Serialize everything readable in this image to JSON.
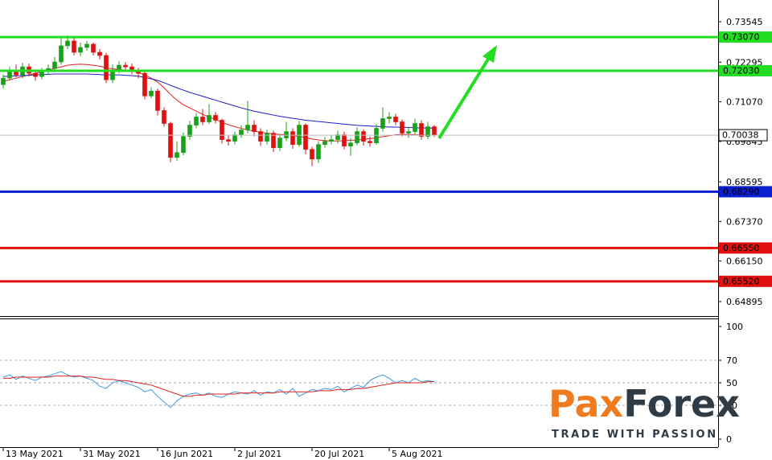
{
  "chart_data": [
    {
      "type": "candlestick",
      "categories": [
        "13 May 2021",
        null,
        null,
        null,
        null,
        null,
        null,
        null,
        null,
        null,
        null,
        null,
        "31 May 2021",
        null,
        null,
        null,
        null,
        null,
        null,
        null,
        null,
        null,
        null,
        null,
        "16 Jun 2021",
        null,
        null,
        null,
        null,
        null,
        null,
        null,
        null,
        null,
        null,
        null,
        "2 Jul 2021",
        null,
        null,
        null,
        null,
        null,
        null,
        null,
        null,
        null,
        null,
        null,
        "20 Jul 2021",
        null,
        null,
        null,
        null,
        null,
        null,
        null,
        null,
        null,
        null,
        null,
        "5 Aug 2021",
        null,
        null,
        null,
        null,
        null,
        null,
        null
      ],
      "ohlc": [
        [
          0.716,
          0.7192,
          0.7148,
          0.718
        ],
        [
          0.718,
          0.7215,
          0.7172,
          0.7205
        ],
        [
          0.7205,
          0.7222,
          0.7182,
          0.719
        ],
        [
          0.719,
          0.7228,
          0.718,
          0.7215
        ],
        [
          0.7215,
          0.7225,
          0.7185,
          0.7195
        ],
        [
          0.7195,
          0.7205,
          0.7172,
          0.7185
        ],
        [
          0.7185,
          0.7212,
          0.7176,
          0.72
        ],
        [
          0.72,
          0.7222,
          0.719,
          0.721
        ],
        [
          0.721,
          0.7245,
          0.7198,
          0.723
        ],
        [
          0.723,
          0.731,
          0.7222,
          0.728
        ],
        [
          0.728,
          0.7312,
          0.727,
          0.7295
        ],
        [
          0.7295,
          0.7305,
          0.725,
          0.726
        ],
        [
          0.726,
          0.729,
          0.7248,
          0.7275
        ],
        [
          0.7275,
          0.7296,
          0.7265,
          0.7285
        ],
        [
          0.7285,
          0.729,
          0.725,
          0.726
        ],
        [
          0.726,
          0.727,
          0.7238,
          0.725
        ],
        [
          0.725,
          0.7258,
          0.7165,
          0.7175
        ],
        [
          0.7175,
          0.7222,
          0.7165,
          0.7205
        ],
        [
          0.7205,
          0.7232,
          0.7195,
          0.722
        ],
        [
          0.722,
          0.723,
          0.72,
          0.7215
        ],
        [
          0.7215,
          0.7225,
          0.7192,
          0.7205
        ],
        [
          0.7205,
          0.7212,
          0.718,
          0.7195
        ],
        [
          0.7195,
          0.72,
          0.7115,
          0.7125
        ],
        [
          0.7125,
          0.7152,
          0.7118,
          0.714
        ],
        [
          0.714,
          0.7148,
          0.7065,
          0.708
        ],
        [
          0.708,
          0.709,
          0.703,
          0.704
        ],
        [
          0.704,
          0.7045,
          0.692,
          0.6935
        ],
        [
          0.6935,
          0.6985,
          0.6925,
          0.695
        ],
        [
          0.695,
          0.7012,
          0.6942,
          0.7
        ],
        [
          0.7,
          0.7048,
          0.699,
          0.7035
        ],
        [
          0.7035,
          0.7072,
          0.7025,
          0.706
        ],
        [
          0.706,
          0.7085,
          0.7035,
          0.7045
        ],
        [
          0.7045,
          0.71,
          0.7038,
          0.7065
        ],
        [
          0.7065,
          0.7075,
          0.704,
          0.705
        ],
        [
          0.705,
          0.7055,
          0.6978,
          0.699
        ],
        [
          0.699,
          0.7002,
          0.6972,
          0.6985
        ],
        [
          0.6985,
          0.7015,
          0.6975,
          0.7005
        ],
        [
          0.7005,
          0.7035,
          0.6995,
          0.702
        ],
        [
          0.702,
          0.711,
          0.701,
          0.7035
        ],
        [
          0.7035,
          0.705,
          0.7,
          0.7015
        ],
        [
          0.7015,
          0.7025,
          0.697,
          0.6985
        ],
        [
          0.6985,
          0.702,
          0.6975,
          0.701
        ],
        [
          0.701,
          0.7018,
          0.6952,
          0.6965
        ],
        [
          0.6965,
          0.7008,
          0.6955,
          0.6995
        ],
        [
          0.6995,
          0.7045,
          0.6985,
          0.7015
        ],
        [
          0.7015,
          0.7025,
          0.6962,
          0.6975
        ],
        [
          0.6975,
          0.7048,
          0.6968,
          0.7035
        ],
        [
          0.7035,
          0.704,
          0.6945,
          0.696
        ],
        [
          0.696,
          0.6968,
          0.6908,
          0.693
        ],
        [
          0.693,
          0.6985,
          0.6918,
          0.6975
        ],
        [
          0.6975,
          0.6998,
          0.6965,
          0.6985
        ],
        [
          0.6985,
          0.7005,
          0.6975,
          0.699
        ],
        [
          0.699,
          0.7018,
          0.6978,
          0.7005
        ],
        [
          0.7005,
          0.7015,
          0.696,
          0.697
        ],
        [
          0.697,
          0.6995,
          0.694,
          0.698
        ],
        [
          0.698,
          0.7028,
          0.6972,
          0.7015
        ],
        [
          0.7015,
          0.7022,
          0.6972,
          0.6985
        ],
        [
          0.6985,
          0.7,
          0.6968,
          0.698
        ],
        [
          0.698,
          0.7038,
          0.6975,
          0.7025
        ],
        [
          0.7025,
          0.709,
          0.7015,
          0.7055
        ],
        [
          0.7055,
          0.7075,
          0.704,
          0.706
        ],
        [
          0.706,
          0.707,
          0.7035,
          0.7045
        ],
        [
          0.7045,
          0.7052,
          0.7,
          0.701
        ],
        [
          0.701,
          0.7028,
          0.6995,
          0.7015
        ],
        [
          0.7015,
          0.7055,
          0.7005,
          0.704
        ],
        [
          0.704,
          0.705,
          0.699,
          0.7
        ],
        [
          0.7,
          0.7045,
          0.6992,
          0.703
        ],
        [
          0.703,
          0.7035,
          0.6998,
          0.70038
        ]
      ],
      "up_color": "#1aa01a",
      "down_color": "#e01010",
      "series": [
        {
          "color": "#e02020",
          "values": [
            0.717,
            0.7175,
            0.718,
            0.7185,
            0.719,
            0.7195,
            0.72,
            0.7205,
            0.721,
            0.7215,
            0.722,
            0.7222,
            0.7223,
            0.7222,
            0.722,
            0.7217,
            0.7212,
            0.7209,
            0.7207,
            0.7205,
            0.7202,
            0.7198,
            0.719,
            0.718,
            0.7168,
            0.715,
            0.713,
            0.7112,
            0.7098,
            0.7088,
            0.7078,
            0.7068,
            0.706,
            0.7052,
            0.7044,
            0.7036,
            0.703,
            0.7025,
            0.702,
            0.7016,
            0.7013,
            0.701,
            0.7008,
            0.7006,
            0.7005,
            0.7003,
            0.7,
            0.6996,
            0.6992,
            0.6989,
            0.6987,
            0.6986,
            0.6986,
            0.6987,
            0.6988,
            0.6989,
            0.6991,
            0.6993,
            0.6996,
            0.6999,
            0.7002,
            0.7005,
            0.7006,
            0.7006,
            0.7005,
            0.7005,
            0.7004,
            0.7004
          ]
        },
        {
          "color": "#1c1cc8",
          "values": [
            0.7185,
            0.7186,
            0.7187,
            0.7188,
            0.7189,
            0.719,
            0.7191,
            0.7192,
            0.7193,
            0.7193,
            0.7193,
            0.7193,
            0.7193,
            0.7193,
            0.7192,
            0.7191,
            0.719,
            0.719,
            0.719,
            0.7189,
            0.7188,
            0.7186,
            0.7182,
            0.7178,
            0.7173,
            0.7166,
            0.7158,
            0.715,
            0.7143,
            0.7136,
            0.713,
            0.7124,
            0.7118,
            0.7112,
            0.7106,
            0.71,
            0.7094,
            0.7088,
            0.7083,
            0.7078,
            0.7074,
            0.707,
            0.7066,
            0.7062,
            0.7059,
            0.7056,
            0.7053,
            0.705,
            0.7048,
            0.7046,
            0.7044,
            0.7042,
            0.704,
            0.7038,
            0.7036,
            0.7034,
            0.7033,
            0.7032,
            0.7031,
            0.703,
            0.7029,
            0.7029,
            0.7028,
            0.7028,
            0.7027,
            0.7026,
            0.7026,
            0.7025
          ]
        }
      ],
      "ylim": [
        0.64447,
        0.74216
      ],
      "yticks": [
        0.73545,
        0.72295,
        {
          "value": 0.7107,
          "label": "0.71070"
        },
        0.69845,
        0.68595,
        {
          "value": 0.6737,
          "label": "0.67370"
        },
        {
          "value": 0.6615,
          "label": "0.66150"
        },
        0.64895
      ],
      "levels": [
        {
          "value": 0.7307,
          "label": "0.73070",
          "color": "#22dd22"
        },
        {
          "value": 0.7203,
          "label": "0.72030",
          "color": "#22dd22"
        },
        {
          "value": 0.6829,
          "label": "0.68290",
          "color": "#0a1ed2"
        },
        {
          "value": 0.6655,
          "label": "0.66550",
          "color": "#e01010"
        },
        {
          "value": 0.6552,
          "label": "0.65520",
          "color": "#e01010"
        }
      ],
      "last_price": {
        "value": 0.70038,
        "color": "#c0c0c0"
      }
    },
    {
      "type": "line",
      "series": [
        {
          "color": "#3c9be0",
          "values": [
            55,
            57,
            53,
            56,
            54,
            52,
            55,
            56,
            58,
            60,
            57,
            55,
            56,
            54,
            52,
            47,
            45,
            50,
            52,
            50,
            48,
            46,
            42,
            44,
            38,
            33,
            28,
            34,
            38,
            40,
            41,
            39,
            41,
            38,
            37,
            40,
            42,
            41,
            40,
            43,
            39,
            42,
            41,
            44,
            40,
            45,
            38,
            41,
            44,
            43,
            45,
            44,
            47,
            42,
            45,
            48,
            46,
            52,
            55,
            57,
            54,
            50,
            52,
            50,
            54,
            51,
            52,
            51
          ]
        },
        {
          "color": "#e02020",
          "values": [
            54,
            54,
            55,
            55,
            55,
            55,
            55,
            55,
            56,
            56,
            56,
            56,
            56,
            55,
            55,
            54,
            53,
            53,
            52,
            52,
            51,
            50,
            49,
            48,
            46,
            44,
            42,
            40,
            38,
            38,
            39,
            39,
            40,
            40,
            40,
            40,
            40,
            41,
            41,
            41,
            41,
            41,
            41,
            42,
            42,
            42,
            42,
            42,
            42,
            43,
            43,
            43,
            44,
            44,
            44,
            45,
            45,
            46,
            47,
            48,
            49,
            50,
            50,
            50,
            50,
            50,
            51,
            51
          ]
        }
      ],
      "ylim": [
        -7.1,
        106.4
      ],
      "yticks": [
        0,
        30,
        50,
        70,
        100
      ],
      "dashed_levels": [
        30,
        50,
        70
      ]
    }
  ],
  "logo": {
    "brand": [
      "Pax",
      "Forex"
    ],
    "tagline": "TRADE WITH PASSION"
  }
}
